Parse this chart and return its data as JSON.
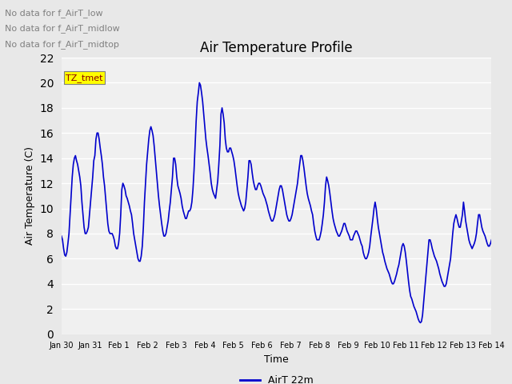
{
  "title": "Air Temperature Profile",
  "xlabel": "Time",
  "ylabel": "Air Temperature (C)",
  "line_color": "#0000CC",
  "line_width": 1.2,
  "ylim": [
    0,
    22
  ],
  "yticks": [
    0,
    2,
    4,
    6,
    8,
    10,
    12,
    14,
    16,
    18,
    20,
    22
  ],
  "bg_color": "#E8E8E8",
  "plot_bg_color": "#F0F0F0",
  "legend_label": "AirT 22m",
  "legend_color": "#0000CC",
  "no_data_lines": [
    "No data for f_AirT_low",
    "No data for f_AirT_midlow",
    "No data for f_AirT_midtop"
  ],
  "legend_box_color": "#FFFF00",
  "legend_box_text": "TZ_tmet",
  "tick_labels": [
    "Jan 30",
    "Jan 31",
    "Feb 1",
    "Feb 2",
    "Feb 3",
    "Feb 4",
    "Feb 5",
    "Feb 6",
    "Feb 7",
    "Feb 8",
    "Feb 9",
    "Feb 10",
    "Feb 11",
    "Feb 12",
    "Feb 13",
    "Feb 14"
  ],
  "temperatures": [
    7.8,
    7.5,
    6.8,
    6.3,
    6.2,
    6.5,
    7.2,
    8.0,
    9.5,
    11.0,
    12.5,
    13.5,
    14.0,
    14.2,
    13.8,
    13.5,
    13.0,
    12.5,
    11.8,
    10.5,
    9.5,
    8.5,
    8.0,
    8.0,
    8.2,
    8.5,
    9.5,
    10.5,
    11.5,
    12.5,
    13.8,
    14.2,
    15.5,
    16.0,
    16.0,
    15.5,
    14.8,
    14.2,
    13.5,
    12.5,
    11.8,
    10.8,
    9.8,
    8.8,
    8.2,
    8.0,
    8.0,
    8.0,
    7.8,
    7.5,
    7.0,
    6.8,
    6.8,
    7.2,
    8.0,
    9.5,
    11.5,
    12.0,
    11.8,
    11.5,
    11.0,
    10.8,
    10.5,
    10.2,
    9.8,
    9.5,
    8.8,
    8.0,
    7.5,
    7.0,
    6.5,
    6.0,
    5.8,
    5.8,
    6.2,
    7.0,
    8.5,
    10.5,
    12.0,
    13.5,
    14.5,
    15.5,
    16.2,
    16.5,
    16.2,
    15.8,
    15.0,
    14.0,
    13.0,
    12.0,
    11.0,
    10.2,
    9.5,
    8.8,
    8.2,
    7.8,
    7.8,
    8.0,
    8.5,
    9.0,
    9.8,
    10.5,
    11.5,
    12.5,
    14.0,
    14.0,
    13.5,
    12.5,
    11.8,
    11.5,
    11.2,
    10.8,
    10.2,
    9.8,
    9.5,
    9.2,
    9.2,
    9.5,
    9.8,
    9.8,
    10.0,
    10.5,
    11.5,
    13.0,
    15.0,
    17.0,
    18.5,
    19.2,
    20.0,
    19.8,
    19.2,
    18.5,
    17.5,
    16.5,
    15.5,
    14.8,
    14.2,
    13.5,
    12.8,
    12.0,
    11.5,
    11.2,
    11.0,
    10.8,
    11.5,
    12.2,
    13.5,
    15.0,
    17.5,
    18.0,
    17.5,
    16.8,
    15.5,
    14.8,
    14.5,
    14.5,
    14.8,
    14.8,
    14.5,
    14.2,
    13.8,
    13.2,
    12.5,
    11.8,
    11.2,
    10.8,
    10.5,
    10.2,
    10.0,
    9.8,
    10.0,
    10.5,
    11.5,
    12.5,
    13.8,
    13.8,
    13.5,
    12.8,
    12.2,
    11.8,
    11.5,
    11.5,
    11.8,
    12.0,
    12.0,
    11.8,
    11.5,
    11.2,
    11.0,
    10.8,
    10.5,
    10.2,
    9.8,
    9.5,
    9.2,
    9.0,
    9.0,
    9.2,
    9.5,
    10.0,
    10.5,
    11.0,
    11.5,
    11.8,
    11.8,
    11.5,
    11.0,
    10.5,
    10.0,
    9.5,
    9.2,
    9.0,
    9.0,
    9.2,
    9.5,
    10.0,
    10.5,
    11.0,
    11.5,
    12.0,
    12.8,
    13.5,
    14.2,
    14.2,
    13.8,
    13.2,
    12.5,
    11.8,
    11.2,
    10.8,
    10.5,
    10.2,
    9.8,
    9.5,
    8.8,
    8.2,
    7.8,
    7.5,
    7.5,
    7.5,
    7.8,
    8.2,
    8.8,
    9.5,
    10.5,
    11.8,
    12.5,
    12.2,
    11.8,
    11.2,
    10.5,
    9.8,
    9.2,
    8.8,
    8.5,
    8.2,
    8.0,
    7.8,
    7.8,
    8.0,
    8.2,
    8.5,
    8.8,
    8.8,
    8.5,
    8.2,
    8.0,
    7.8,
    7.5,
    7.5,
    7.5,
    7.8,
    8.0,
    8.2,
    8.2,
    8.0,
    7.8,
    7.5,
    7.2,
    7.0,
    6.5,
    6.2,
    6.0,
    6.0,
    6.2,
    6.5,
    7.0,
    7.8,
    8.5,
    9.2,
    10.0,
    10.5,
    10.0,
    9.2,
    8.5,
    8.0,
    7.5,
    7.0,
    6.5,
    6.2,
    5.8,
    5.5,
    5.2,
    5.0,
    4.8,
    4.5,
    4.2,
    4.0,
    4.0,
    4.2,
    4.5,
    4.8,
    5.2,
    5.5,
    6.0,
    6.5,
    7.0,
    7.2,
    7.0,
    6.5,
    5.8,
    5.0,
    4.2,
    3.5,
    3.0,
    2.8,
    2.5,
    2.2,
    2.0,
    1.8,
    1.5,
    1.2,
    1.0,
    0.9,
    1.0,
    1.5,
    2.5,
    3.5,
    4.5,
    5.5,
    6.5,
    7.5,
    7.5,
    7.2,
    6.8,
    6.5,
    6.2,
    6.0,
    5.8,
    5.5,
    5.2,
    4.8,
    4.5,
    4.2,
    4.0,
    3.8,
    3.8,
    4.0,
    4.5,
    5.0,
    5.5,
    6.0,
    7.0,
    8.0,
    8.8,
    9.2,
    9.5,
    9.2,
    8.8,
    8.5,
    8.5,
    9.0,
    9.5,
    10.5,
    9.8,
    9.0,
    8.5,
    8.0,
    7.5,
    7.2,
    7.0,
    6.8,
    7.0,
    7.2,
    7.5,
    8.0,
    8.8,
    9.5,
    9.5,
    9.0,
    8.5,
    8.2,
    8.0,
    7.8,
    7.5,
    7.2,
    7.0,
    7.0,
    7.2,
    7.5
  ]
}
